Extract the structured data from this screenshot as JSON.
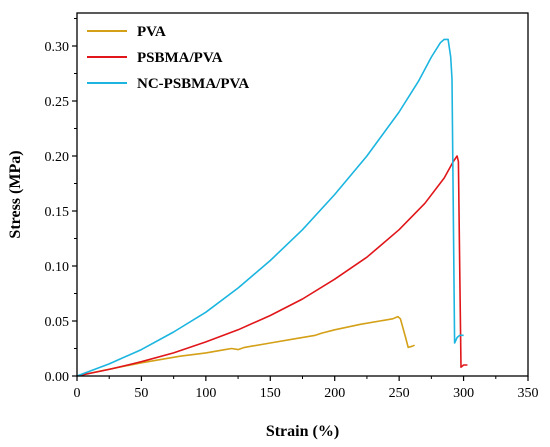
{
  "chart_data": {
    "type": "line",
    "xlabel": "Strain (%)",
    "ylabel": "Stress (MPa)",
    "xlim": [
      0,
      350
    ],
    "ylim": [
      0,
      0.33
    ],
    "x_ticks": [
      0,
      50,
      100,
      150,
      200,
      250,
      300,
      350
    ],
    "x_tick_labels": [
      "0",
      "50",
      "100",
      "150",
      "200",
      "250",
      "300",
      "350"
    ],
    "y_ticks": [
      0.0,
      0.05,
      0.1,
      0.15,
      0.2,
      0.25,
      0.3
    ],
    "y_tick_labels": [
      "0.00",
      "0.05",
      "0.10",
      "0.15",
      "0.20",
      "0.25",
      "0.30"
    ],
    "grid": false,
    "legend_position": "top-left",
    "series": [
      {
        "name": "PVA",
        "color": "#D4A017",
        "points": [
          [
            0,
            0
          ],
          [
            20,
            0.005
          ],
          [
            50,
            0.012
          ],
          [
            80,
            0.018
          ],
          [
            100,
            0.021
          ],
          [
            115,
            0.024
          ],
          [
            120,
            0.025
          ],
          [
            125,
            0.024
          ],
          [
            130,
            0.026
          ],
          [
            150,
            0.03
          ],
          [
            170,
            0.034
          ],
          [
            185,
            0.037
          ],
          [
            190,
            0.039
          ],
          [
            200,
            0.042
          ],
          [
            220,
            0.047
          ],
          [
            235,
            0.05
          ],
          [
            245,
            0.052
          ],
          [
            249,
            0.054
          ],
          [
            251,
            0.052
          ],
          [
            255,
            0.035
          ],
          [
            257,
            0.026
          ],
          [
            260,
            0.027
          ],
          [
            262,
            0.028
          ]
        ]
      },
      {
        "name": "PSBMA/PVA",
        "color": "#E0161A",
        "points": [
          [
            0,
            0
          ],
          [
            25,
            0.006
          ],
          [
            50,
            0.013
          ],
          [
            75,
            0.021
          ],
          [
            100,
            0.031
          ],
          [
            125,
            0.042
          ],
          [
            150,
            0.055
          ],
          [
            175,
            0.07
          ],
          [
            200,
            0.088
          ],
          [
            225,
            0.108
          ],
          [
            250,
            0.133
          ],
          [
            270,
            0.157
          ],
          [
            285,
            0.18
          ],
          [
            292,
            0.195
          ],
          [
            295,
            0.2
          ],
          [
            296,
            0.195
          ],
          [
            297,
            0.1
          ],
          [
            298,
            0.008
          ],
          [
            300,
            0.01
          ],
          [
            303,
            0.01
          ]
        ]
      },
      {
        "name": "NC-PSBMA/PVA",
        "color": "#1CB5E0",
        "points": [
          [
            0,
            0
          ],
          [
            25,
            0.011
          ],
          [
            50,
            0.024
          ],
          [
            75,
            0.04
          ],
          [
            100,
            0.058
          ],
          [
            125,
            0.08
          ],
          [
            150,
            0.105
          ],
          [
            175,
            0.133
          ],
          [
            200,
            0.165
          ],
          [
            225,
            0.2
          ],
          [
            250,
            0.24
          ],
          [
            265,
            0.268
          ],
          [
            275,
            0.29
          ],
          [
            282,
            0.303
          ],
          [
            285,
            0.306
          ],
          [
            288,
            0.306
          ],
          [
            290,
            0.29
          ],
          [
            291,
            0.27
          ],
          [
            292,
            0.15
          ],
          [
            293,
            0.03
          ],
          [
            295,
            0.035
          ],
          [
            297,
            0.037
          ],
          [
            300,
            0.037
          ]
        ]
      }
    ]
  }
}
